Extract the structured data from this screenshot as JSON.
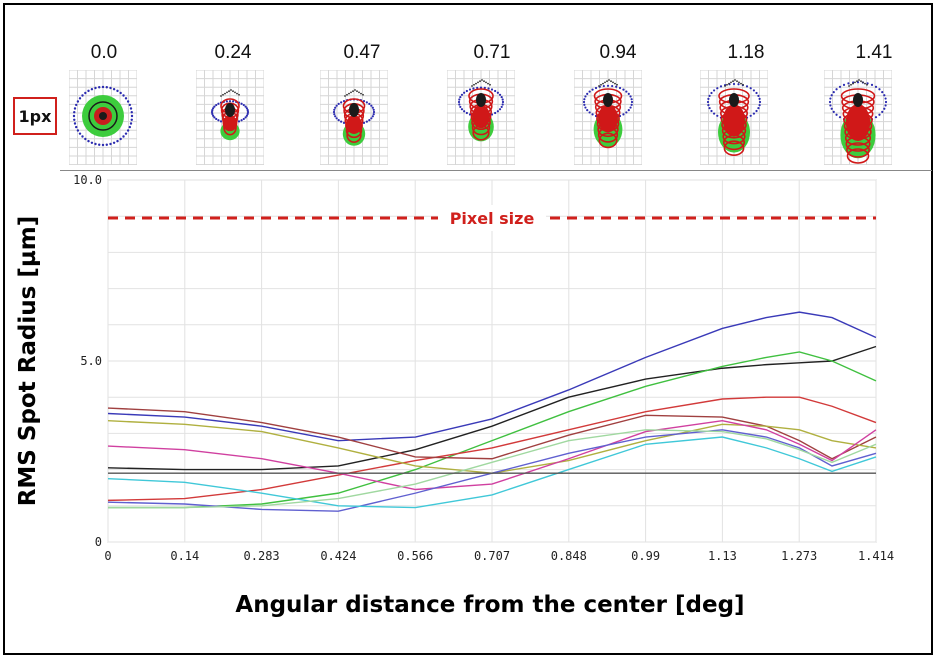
{
  "spot_fields": [
    "0.0",
    "0.24",
    "0.47",
    "0.71",
    "0.94",
    "1.18",
    "1.41"
  ],
  "scale_badge": "1px",
  "chart_data": {
    "type": "line",
    "title": "",
    "xlabel": "Angular distance from the center [deg]",
    "ylabel": "RMS Spot Radius [µm]",
    "xlim": [
      0,
      1.414
    ],
    "ylim": [
      0,
      10
    ],
    "xticks": [
      "0",
      "0.14",
      "0.283",
      "0.424",
      "0.566",
      "0.707",
      "0.848",
      "0.99",
      "1.13",
      "1.273",
      "1.414"
    ],
    "yticks": [
      {
        "value": 0,
        "label": "0"
      },
      {
        "value": 5,
        "label": "5.0"
      },
      {
        "value": 10,
        "label": "10.0"
      }
    ],
    "grid": true,
    "reference_line": {
      "y": 8.95,
      "label": "Pixel size",
      "color": "#d0201c",
      "style": "dashed"
    },
    "x": [
      0,
      0.141,
      0.283,
      0.424,
      0.566,
      0.707,
      0.848,
      0.99,
      1.131,
      1.212,
      1.273,
      1.333,
      1.414
    ],
    "series": [
      {
        "color": "#3a3ab8",
        "values": [
          3.55,
          3.45,
          3.2,
          2.8,
          2.9,
          3.4,
          4.2,
          5.1,
          5.9,
          6.2,
          6.35,
          6.2,
          5.65
        ]
      },
      {
        "color": "#222222",
        "values": [
          2.05,
          2.0,
          2.0,
          2.1,
          2.55,
          3.2,
          4.0,
          4.5,
          4.8,
          4.9,
          4.95,
          5.0,
          5.4
        ]
      },
      {
        "color": "#40c040",
        "values": [
          0.95,
          0.95,
          1.05,
          1.35,
          2.0,
          2.8,
          3.6,
          4.3,
          4.85,
          5.1,
          5.25,
          5.0,
          4.45
        ]
      },
      {
        "color": "#d23a3a",
        "values": [
          1.15,
          1.2,
          1.45,
          1.85,
          2.25,
          2.6,
          3.1,
          3.6,
          3.95,
          4.0,
          4.0,
          3.75,
          3.3
        ]
      },
      {
        "color": "#a04040",
        "values": [
          3.7,
          3.6,
          3.3,
          2.9,
          2.35,
          2.3,
          2.95,
          3.5,
          3.45,
          3.2,
          2.8,
          2.3,
          2.9
        ]
      },
      {
        "color": "#b0b040",
        "values": [
          3.35,
          3.25,
          3.05,
          2.6,
          2.1,
          1.9,
          2.25,
          2.8,
          3.25,
          3.2,
          3.1,
          2.8,
          2.6
        ]
      },
      {
        "color": "#d040a0",
        "values": [
          2.65,
          2.55,
          2.3,
          1.9,
          1.45,
          1.6,
          2.3,
          3.05,
          3.35,
          3.1,
          2.7,
          2.25,
          3.1
        ]
      },
      {
        "color": "#6060d0",
        "values": [
          1.1,
          1.05,
          0.9,
          0.85,
          1.35,
          1.9,
          2.45,
          2.9,
          3.1,
          2.9,
          2.6,
          2.1,
          2.45
        ]
      },
      {
        "color": "#40c8d8",
        "values": [
          1.75,
          1.65,
          1.35,
          1.0,
          0.95,
          1.3,
          2.0,
          2.7,
          2.9,
          2.6,
          2.3,
          1.95,
          2.35
        ]
      },
      {
        "color": "#a0d8a0",
        "values": [
          0.95,
          0.95,
          1.0,
          1.2,
          1.6,
          2.2,
          2.8,
          3.1,
          3.05,
          2.85,
          2.55,
          2.2,
          2.7
        ]
      },
      {
        "color": "#555555",
        "values": [
          1.9,
          1.9,
          1.9,
          1.9,
          1.9,
          1.9,
          1.9,
          1.9,
          1.9,
          1.9,
          1.9,
          1.9,
          1.9
        ]
      }
    ]
  }
}
